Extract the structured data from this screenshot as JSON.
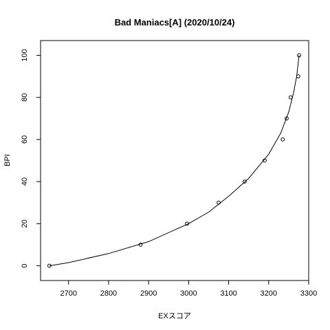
{
  "chart_data": {
    "type": "scatter",
    "title": "Bad Maniacs[A] (2020/10/24)",
    "xlabel": "EXスコア",
    "ylabel": "BPI",
    "xlim": [
      2630,
      3300
    ],
    "ylim": [
      -7,
      107
    ],
    "x_ticks": [
      2700,
      2800,
      2900,
      3000,
      3100,
      3200,
      3300
    ],
    "y_ticks": [
      0,
      20,
      40,
      60,
      80,
      100
    ],
    "points": [
      {
        "x": 2652,
        "y": 0
      },
      {
        "x": 2880,
        "y": 10
      },
      {
        "x": 2996,
        "y": 20
      },
      {
        "x": 3075,
        "y": 30
      },
      {
        "x": 3140,
        "y": 40
      },
      {
        "x": 3190,
        "y": 50
      },
      {
        "x": 3235,
        "y": 60
      },
      {
        "x": 3245,
        "y": 70
      },
      {
        "x": 3255,
        "y": 80
      },
      {
        "x": 3274,
        "y": 90
      },
      {
        "x": 3276,
        "y": 100
      }
    ],
    "curve": [
      {
        "x": 2652,
        "y": 0
      },
      {
        "x": 2700,
        "y": 1.5
      },
      {
        "x": 2800,
        "y": 5.8
      },
      {
        "x": 2900,
        "y": 11.5
      },
      {
        "x": 3000,
        "y": 20
      },
      {
        "x": 3050,
        "y": 25.5
      },
      {
        "x": 3100,
        "y": 33
      },
      {
        "x": 3150,
        "y": 41.5
      },
      {
        "x": 3200,
        "y": 53
      },
      {
        "x": 3230,
        "y": 63
      },
      {
        "x": 3250,
        "y": 73
      },
      {
        "x": 3262,
        "y": 82
      },
      {
        "x": 3270,
        "y": 90
      },
      {
        "x": 3276,
        "y": 100
      }
    ],
    "grid": false,
    "legend": "none"
  }
}
